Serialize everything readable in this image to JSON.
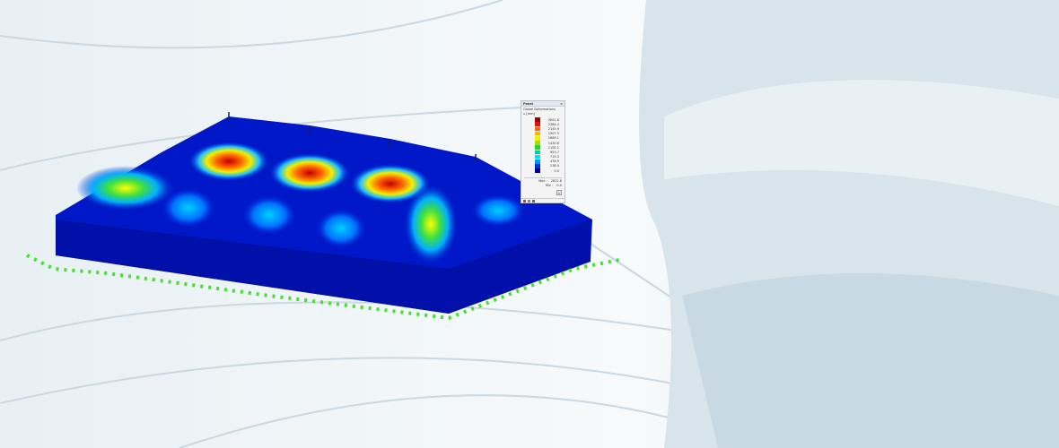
{
  "panel": {
    "header": "Panel",
    "title": "Global Deformations",
    "unit": "u [mm]",
    "scale": [
      {
        "value": "2622.8",
        "color": "#a00000"
      },
      {
        "value": "2384.4",
        "color": "#e01010"
      },
      {
        "value": "2145.9",
        "color": "#ff6000"
      },
      {
        "value": "1907.5",
        "color": "#ffb000"
      },
      {
        "value": "1669.1",
        "color": "#f0f000"
      },
      {
        "value": "1430.6",
        "color": "#a0e000"
      },
      {
        "value": "1192.2",
        "color": "#30d030"
      },
      {
        "value": "953.7",
        "color": "#00d0a0"
      },
      {
        "value": "715.3",
        "color": "#00e0f0"
      },
      {
        "value": "476.9",
        "color": "#0090ff"
      },
      {
        "value": "238.4",
        "color": "#0030e0"
      },
      {
        "value": "0.0",
        "color": "#000090"
      }
    ],
    "max_label": "Max :",
    "max_value": "2622.8",
    "min_label": "Min :",
    "min_value": "0.0"
  }
}
